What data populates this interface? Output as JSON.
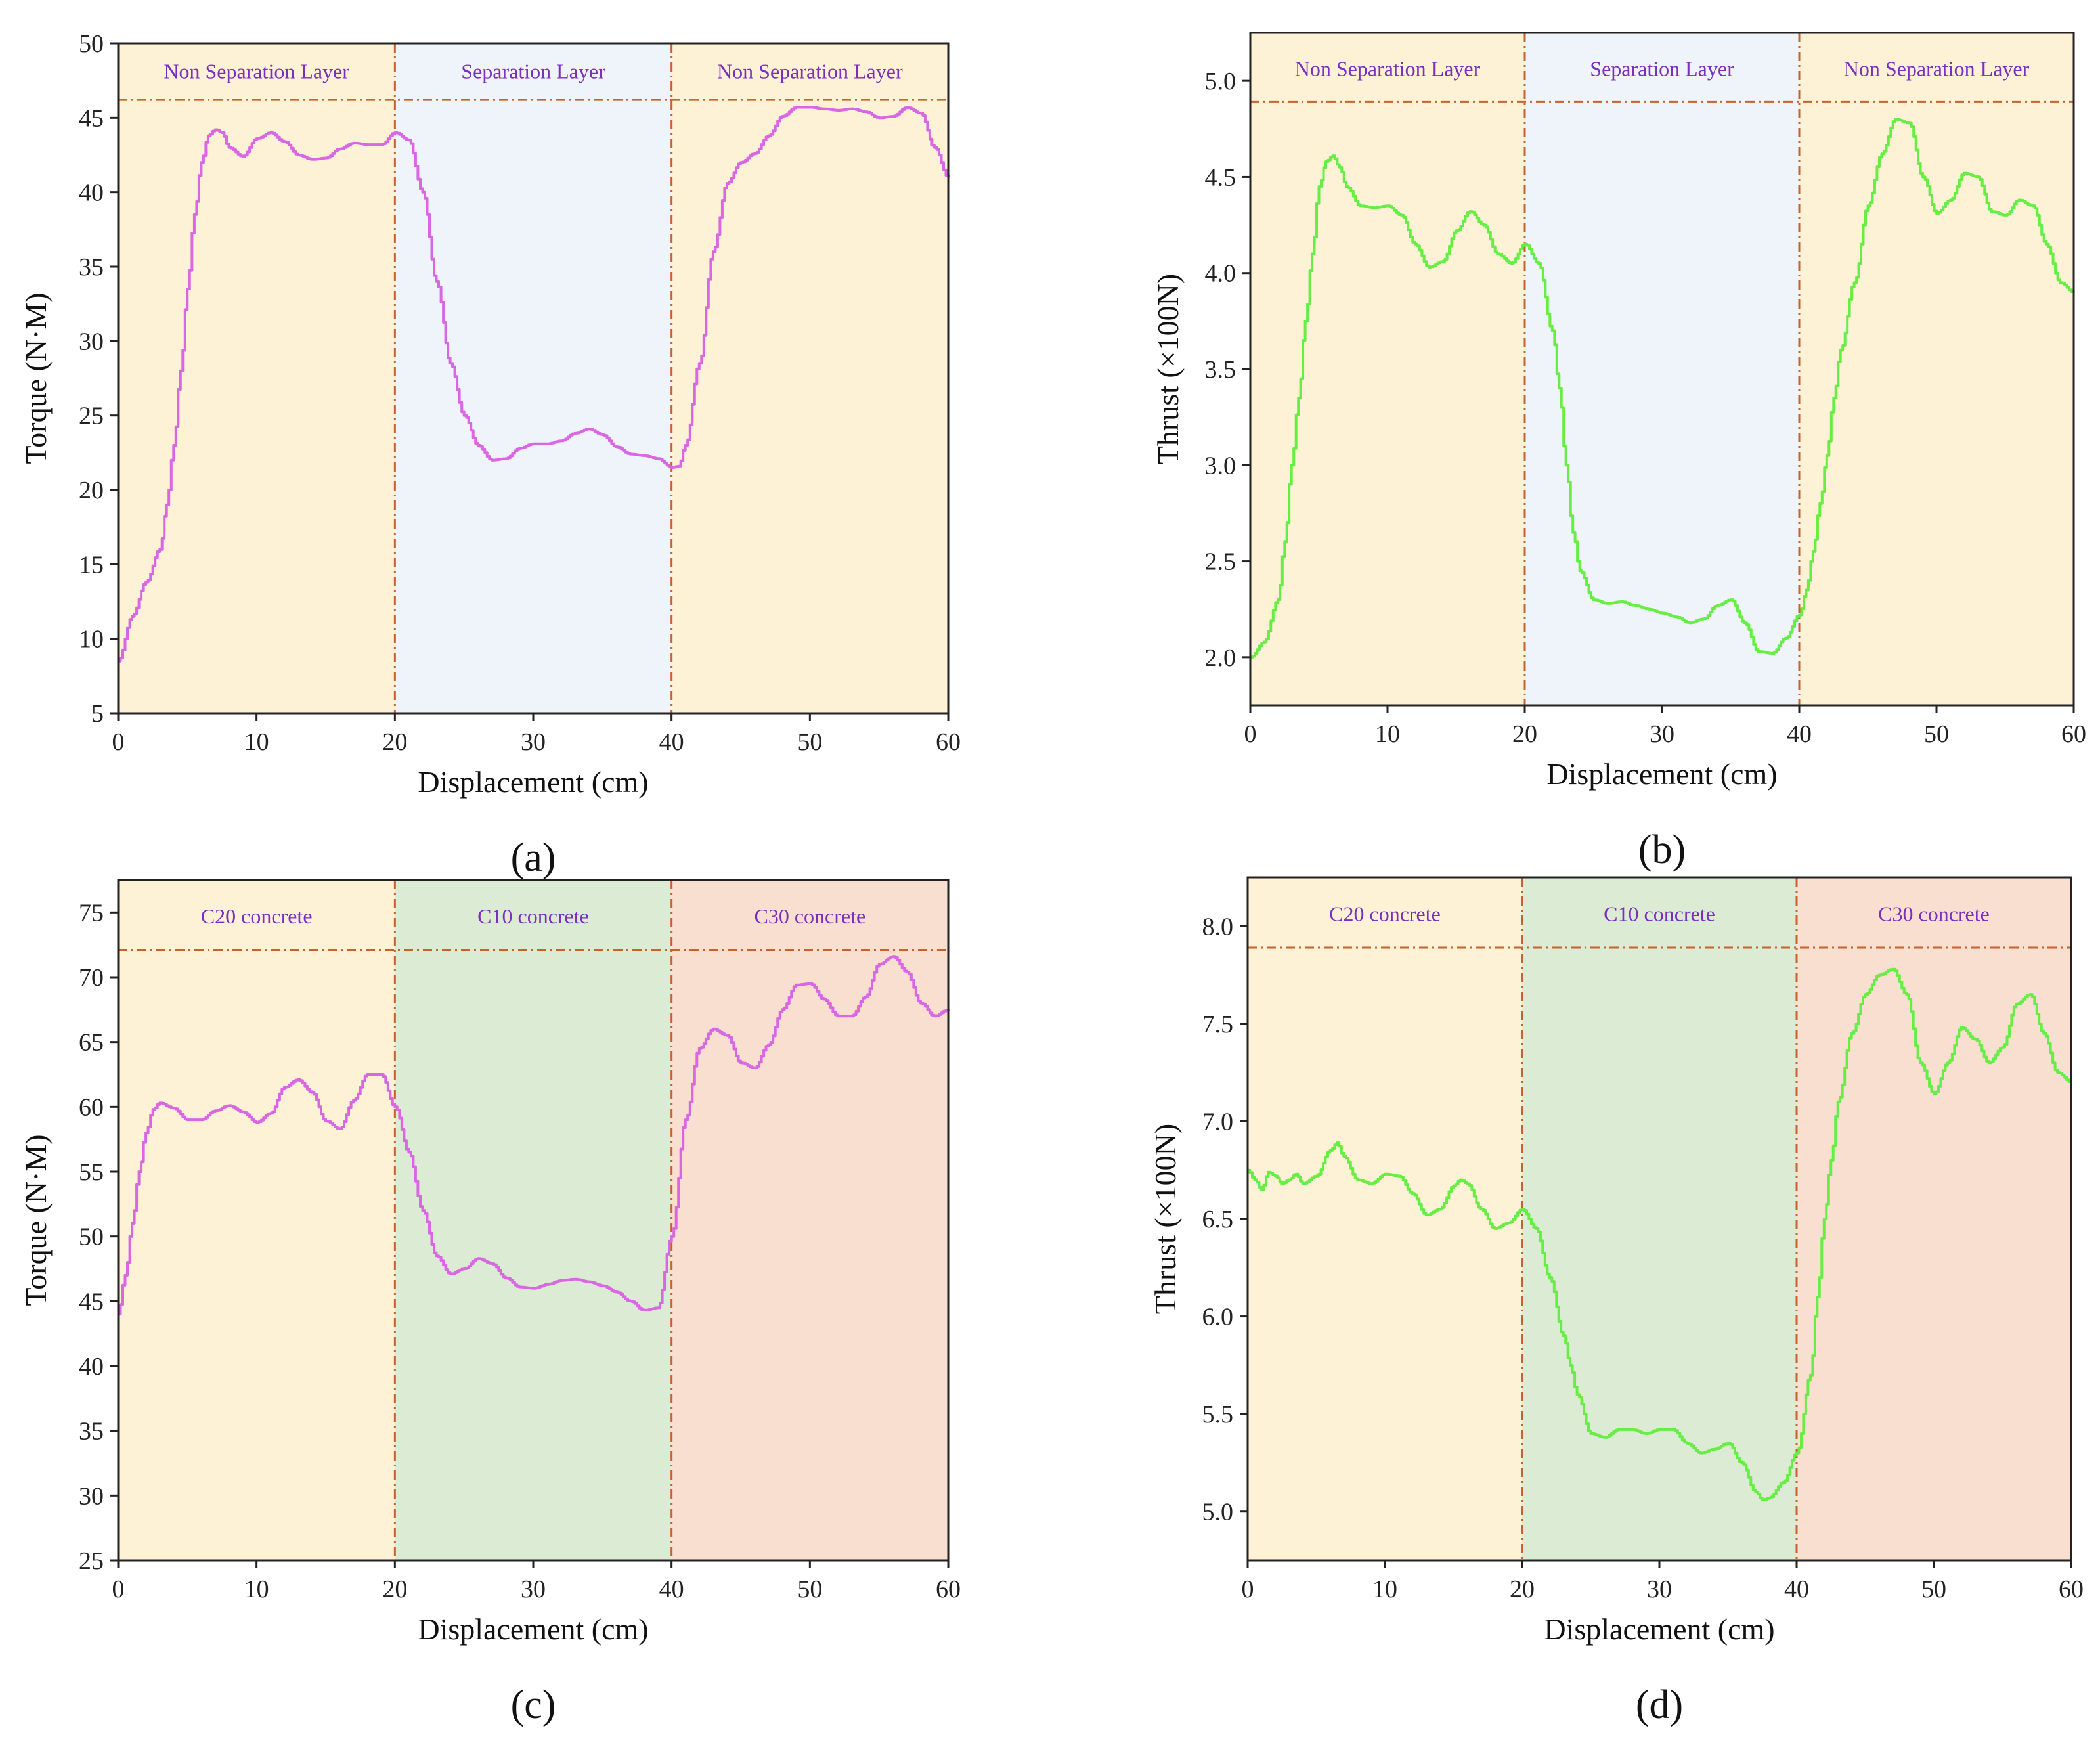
{
  "chart_data": [
    {
      "id": "a",
      "type": "line",
      "caption": "(a)",
      "xlabel": "Displacement (cm)",
      "ylabel": "Torque (N·M)",
      "xlim": [
        0,
        60
      ],
      "ylim": [
        5,
        50
      ],
      "xticks": [
        0,
        10,
        20,
        30,
        40,
        50,
        60
      ],
      "yticks": [
        5,
        10,
        15,
        20,
        25,
        30,
        35,
        40,
        45,
        50
      ],
      "tick_decimals": 0,
      "line_color": "#d966e3",
      "label_color": "#7a2fbf",
      "threshold": 46.2,
      "threshold_color": "#c8622c",
      "stepped": true,
      "regions": [
        {
          "x0": 0,
          "x1": 20,
          "label": "Non Separation Layer",
          "color": "#fdf2d6"
        },
        {
          "x0": 20,
          "x1": 40,
          "label": "Separation Layer",
          "color": "#eff4fa"
        },
        {
          "x0": 40,
          "x1": 60,
          "label": "Non Separation Layer",
          "color": "#fdf2d6"
        }
      ],
      "series": [
        {
          "name": "Torque",
          "x": [
            0,
            1,
            2,
            3,
            3.5,
            4,
            4.5,
            5,
            5.5,
            6,
            6.5,
            7,
            7.5,
            8,
            9,
            10,
            11,
            12,
            13,
            14,
            15,
            16,
            17,
            18,
            19,
            20,
            21,
            22,
            23,
            24,
            25,
            26,
            27,
            28,
            29,
            30,
            31,
            32,
            33,
            34,
            35,
            36,
            37,
            38,
            39,
            40,
            40.5,
            41,
            42,
            43,
            44,
            45,
            46,
            47,
            48,
            49,
            50,
            51,
            52,
            53,
            54,
            55,
            56,
            57,
            58,
            59,
            60
          ],
          "y": [
            8.5,
            11.5,
            13.8,
            16,
            19,
            23,
            28,
            33.5,
            38.5,
            42,
            43.8,
            44.2,
            44,
            43,
            42.4,
            43.6,
            44,
            43.4,
            42.5,
            42.2,
            42.3,
            42.9,
            43.3,
            43.2,
            43.2,
            44,
            43.5,
            40,
            34,
            28.5,
            25,
            23,
            22,
            22.1,
            22.8,
            23.1,
            23.1,
            23.3,
            23.8,
            24.1,
            23.7,
            22.9,
            22.4,
            22.3,
            22.1,
            21.5,
            21.6,
            23,
            28.5,
            36,
            40.6,
            42,
            42.6,
            43.8,
            45.1,
            45.7,
            45.7,
            45.6,
            45.5,
            45.6,
            45.4,
            45,
            45.1,
            45.7,
            45.3,
            43,
            41
          ]
        }
      ]
    },
    {
      "id": "b",
      "type": "line",
      "caption": "(b)",
      "xlabel": "Displacement (cm)",
      "ylabel": "Thrust (×100N)",
      "xlim": [
        0,
        60
      ],
      "ylim": [
        1.75,
        5.25
      ],
      "xticks": [
        0,
        10,
        20,
        30,
        40,
        50,
        60
      ],
      "yticks": [
        2.0,
        2.5,
        3.0,
        3.5,
        4.0,
        4.5,
        5.0
      ],
      "tick_decimals": 1,
      "line_color": "#66ee44",
      "label_color": "#7a2fbf",
      "threshold": 4.89,
      "threshold_color": "#c8622c",
      "stepped": true,
      "regions": [
        {
          "x0": 0,
          "x1": 20,
          "label": "Non Separation Layer",
          "color": "#fdf2d6"
        },
        {
          "x0": 20,
          "x1": 40,
          "label": "Separation Layer",
          "color": "#eff4fa"
        },
        {
          "x0": 40,
          "x1": 60,
          "label": "Non Separation Layer",
          "color": "#fdf2d6"
        }
      ],
      "series": [
        {
          "name": "Thrust",
          "x": [
            0,
            1,
            2,
            2.5,
            3,
            3.5,
            4,
            4.5,
            5,
            5.5,
            6,
            6.5,
            7,
            8,
            9,
            10,
            11,
            12,
            13,
            14,
            15,
            16,
            17,
            18,
            19,
            20,
            21,
            22,
            22.5,
            23,
            23.5,
            24,
            25,
            26,
            27,
            28,
            29,
            30,
            31,
            32,
            33,
            34,
            35,
            36,
            37,
            38,
            39,
            40,
            40.5,
            41,
            41.5,
            42,
            42.5,
            43,
            44,
            45,
            46,
            47,
            48,
            49,
            50,
            51,
            52,
            53,
            54,
            55,
            56,
            57,
            58,
            59,
            60
          ],
          "y": [
            2.0,
            2.08,
            2.3,
            2.6,
            3.0,
            3.35,
            3.75,
            4.1,
            4.45,
            4.58,
            4.61,
            4.55,
            4.45,
            4.35,
            4.34,
            4.35,
            4.3,
            4.15,
            4.03,
            4.06,
            4.22,
            4.32,
            4.25,
            4.1,
            4.05,
            4.15,
            4.05,
            3.7,
            3.4,
            3.0,
            2.65,
            2.45,
            2.3,
            2.28,
            2.29,
            2.27,
            2.25,
            2.23,
            2.21,
            2.18,
            2.2,
            2.27,
            2.3,
            2.18,
            2.03,
            2.02,
            2.1,
            2.22,
            2.35,
            2.55,
            2.8,
            3.05,
            3.35,
            3.6,
            3.95,
            4.35,
            4.62,
            4.8,
            4.78,
            4.5,
            4.31,
            4.38,
            4.52,
            4.5,
            4.32,
            4.3,
            4.38,
            4.35,
            4.15,
            3.95,
            3.9
          ]
        }
      ]
    },
    {
      "id": "c",
      "type": "line",
      "caption": "(c)",
      "xlabel": "Displacement (cm)",
      "ylabel": "Torque (N·M)",
      "xlim": [
        0,
        60
      ],
      "ylim": [
        25,
        77.5
      ],
      "xticks": [
        0,
        10,
        20,
        30,
        40,
        50,
        60
      ],
      "yticks": [
        25,
        30,
        35,
        40,
        45,
        50,
        55,
        60,
        65,
        70,
        75
      ],
      "tick_decimals": 0,
      "line_color": "#d966e3",
      "label_color": "#7a2fbf",
      "threshold": 72.1,
      "threshold_color": "#c8622c",
      "stepped": true,
      "regions": [
        {
          "x0": 0,
          "x1": 20,
          "label": "C20 concrete",
          "color": "#fdf2d6"
        },
        {
          "x0": 20,
          "x1": 40,
          "label": "C10 concrete",
          "color": "#dcecd4"
        },
        {
          "x0": 40,
          "x1": 60,
          "label": "C30 concrete",
          "color": "#f8dfcf"
        }
      ],
      "series": [
        {
          "name": "Torque",
          "x": [
            0,
            0.5,
            1,
            1.5,
            2,
            2.5,
            3,
            4,
            5,
            6,
            7,
            8,
            9,
            10,
            11,
            12,
            13,
            14,
            15,
            16,
            17,
            18,
            19,
            20,
            21,
            22,
            23,
            24,
            25,
            26,
            27,
            28,
            29,
            30,
            31,
            32,
            33,
            34,
            35,
            36,
            37,
            38,
            39,
            40,
            41,
            42,
            43,
            44,
            45,
            46,
            47,
            48,
            49,
            50,
            51,
            52,
            53,
            54,
            55,
            56,
            57,
            58,
            59,
            60
          ],
          "y": [
            44,
            47,
            51,
            55,
            58,
            59.8,
            60.3,
            59.9,
            59,
            59,
            59.7,
            60.1,
            59.6,
            58.8,
            59.5,
            61.5,
            62.1,
            61.1,
            58.9,
            58.3,
            60.5,
            62.5,
            62.5,
            60,
            56.5,
            52,
            48.5,
            47.1,
            47.5,
            48.3,
            47.9,
            46.8,
            46.1,
            46,
            46.3,
            46.6,
            46.7,
            46.5,
            46.2,
            45.7,
            45,
            44.3,
            44.5,
            50,
            59,
            64.5,
            66,
            65.5,
            63.4,
            63,
            64.8,
            67.5,
            69.4,
            69.5,
            68.3,
            67,
            67,
            68.5,
            71,
            71.6,
            70.4,
            68,
            67,
            67.5
          ]
        }
      ]
    },
    {
      "id": "d",
      "type": "line",
      "caption": "(d)",
      "xlabel": "Displacement (cm)",
      "ylabel": "Thrust (×100N)",
      "xlim": [
        0,
        60
      ],
      "ylim": [
        4.75,
        8.25
      ],
      "xticks": [
        0,
        10,
        20,
        30,
        40,
        50,
        60
      ],
      "yticks": [
        5.0,
        5.5,
        6.0,
        6.5,
        7.0,
        7.5,
        8.0
      ],
      "tick_decimals": 1,
      "line_color": "#66ee44",
      "label_color": "#7a2fbf",
      "threshold": 7.89,
      "threshold_color": "#c8622c",
      "stepped": true,
      "regions": [
        {
          "x0": 0,
          "x1": 20,
          "label": "C20 concrete",
          "color": "#fdf2d6"
        },
        {
          "x0": 20,
          "x1": 40,
          "label": "C10 concrete",
          "color": "#dcecd4"
        },
        {
          "x0": 40,
          "x1": 60,
          "label": "C30 concrete",
          "color": "#f8dfcf"
        }
      ],
      "series": [
        {
          "name": "Thrust",
          "x": [
            0,
            0.5,
            1,
            1.5,
            2,
            2.5,
            3,
            3.5,
            4,
            5,
            6,
            6.5,
            7,
            8,
            9,
            10,
            11,
            12,
            13,
            14,
            15,
            15.5,
            16,
            17,
            18,
            19,
            20,
            21,
            22,
            23,
            23.5,
            24,
            25,
            26,
            27,
            28,
            29,
            30,
            31,
            32,
            33,
            34,
            35,
            36,
            37,
            37.5,
            38,
            39,
            40,
            41,
            41.5,
            42,
            42.5,
            43,
            44,
            45,
            46,
            47,
            48,
            49,
            50,
            51,
            52,
            53,
            54,
            55,
            56,
            57,
            58,
            59,
            60
          ],
          "y": [
            6.75,
            6.7,
            6.65,
            6.74,
            6.72,
            6.68,
            6.7,
            6.73,
            6.68,
            6.72,
            6.85,
            6.89,
            6.82,
            6.7,
            6.68,
            6.73,
            6.72,
            6.63,
            6.52,
            6.55,
            6.67,
            6.7,
            6.68,
            6.55,
            6.45,
            6.48,
            6.55,
            6.45,
            6.2,
            5.9,
            5.75,
            5.6,
            5.4,
            5.38,
            5.42,
            5.42,
            5.4,
            5.42,
            5.42,
            5.35,
            5.3,
            5.32,
            5.35,
            5.25,
            5.1,
            5.06,
            5.07,
            5.15,
            5.3,
            5.7,
            6.1,
            6.5,
            6.8,
            7.1,
            7.45,
            7.65,
            7.75,
            7.78,
            7.65,
            7.3,
            7.14,
            7.3,
            7.48,
            7.42,
            7.3,
            7.38,
            7.6,
            7.65,
            7.45,
            7.25,
            7.2
          ]
        }
      ]
    }
  ]
}
